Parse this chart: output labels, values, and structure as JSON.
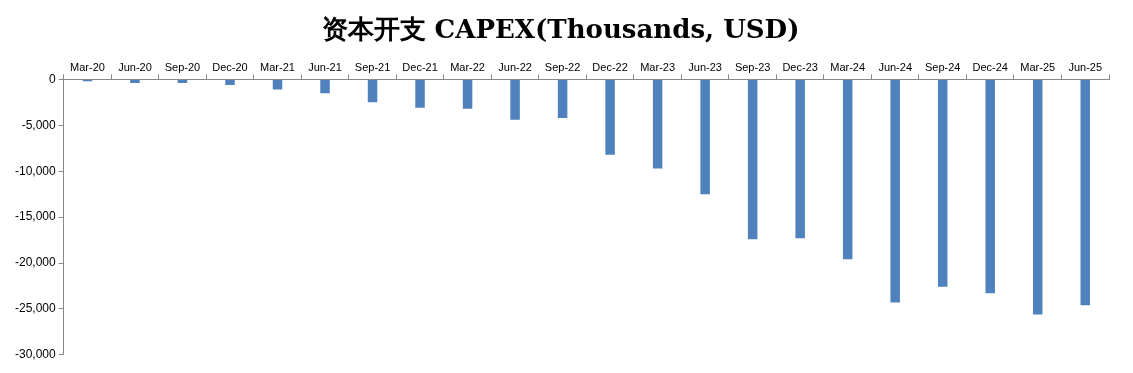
{
  "chart_data": {
    "type": "bar",
    "title": "资本开支 CAPEX(Thousands, USD)",
    "categories": [
      "Mar-20",
      "Jun-20",
      "Sep-20",
      "Dec-20",
      "Mar-21",
      "Jun-21",
      "Sep-21",
      "Dec-21",
      "Mar-22",
      "Jun-22",
      "Sep-22",
      "Dec-22",
      "Mar-23",
      "Jun-23",
      "Sep-23",
      "Dec-23",
      "Mar-24",
      "Jun-24",
      "Sep-24",
      "Dec-24",
      "Mar-25",
      "Jun-25"
    ],
    "values": [
      -200,
      -400,
      -400,
      -600,
      -1100,
      -1500,
      -2500,
      -3100,
      -3200,
      -4400,
      -4200,
      -8200,
      -9700,
      -12500,
      -17400,
      -17300,
      -19600,
      -24300,
      -22600,
      -23300,
      -25600,
      -24600
    ],
    "color": "#4f81bd",
    "ylim": [
      -30000,
      0
    ],
    "yticks": [
      {
        "value": -30000,
        "label": "-30,000"
      },
      {
        "value": -25000,
        "label": "-25,000"
      },
      {
        "value": -20000,
        "label": "-20,000"
      },
      {
        "value": -15000,
        "label": "-15,000"
      },
      {
        "value": -10000,
        "label": "-10,000"
      },
      {
        "value": -5000,
        "label": "-5,000"
      },
      0
    ],
    "grid": false,
    "legend": false
  }
}
